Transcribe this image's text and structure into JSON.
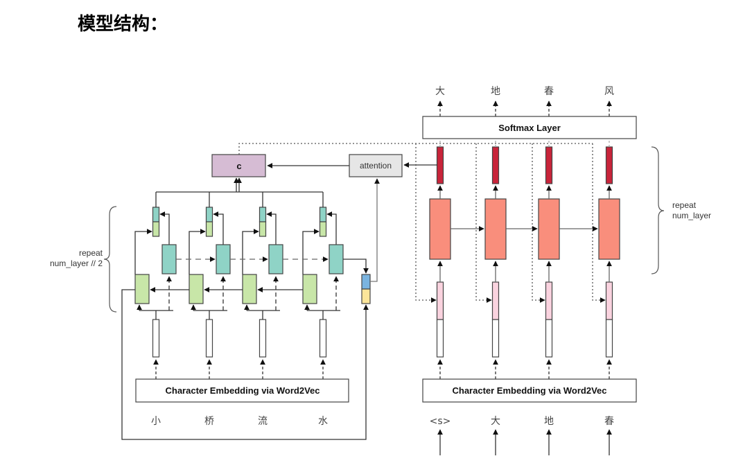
{
  "title": "模型结构：",
  "encoder": {
    "input_chars": [
      "小",
      "桥",
      "流",
      "水"
    ],
    "embedding_label": "Character Embedding via Word2Vec",
    "repeat_label_1": "repeat",
    "repeat_label_2": "num_layer // 2",
    "context_label": "c",
    "attention_label": "attention"
  },
  "decoder": {
    "input_chars": [
      "<s>",
      "大",
      "地",
      "春"
    ],
    "output_chars": [
      "大",
      "地",
      "春",
      "风"
    ],
    "embedding_label": "Character Embedding via Word2Vec",
    "softmax_label": "Softmax Layer",
    "repeat_label_1": "repeat",
    "repeat_label_2": "num_layer"
  },
  "colors": {
    "forward_cell": "#c8e6a8",
    "backward_cell": "#8fd3c6",
    "context": "#d6bcd4",
    "attention": "#e6e6e6",
    "decoder_cell": "#f98e7c",
    "decoder_output": "#c8243a",
    "decoder_input": "#fad3df",
    "state_top": "#7ab4e0",
    "state_bottom": "#fbe59a"
  }
}
